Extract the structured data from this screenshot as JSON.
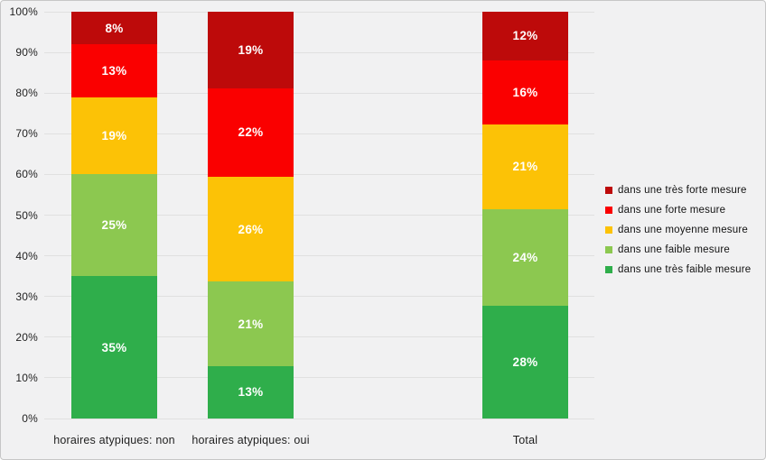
{
  "chart_data": {
    "type": "bar",
    "stacked": true,
    "percent_stacked": true,
    "title": "",
    "xlabel": "",
    "ylabel": "",
    "categories": [
      "horaires atypiques: non",
      "horaires atypiques: oui",
      "Total"
    ],
    "series": [
      {
        "name": "dans une très faible mesure",
        "color": "#2fae4b",
        "values": [
          35,
          13,
          28
        ]
      },
      {
        "name": "dans une faible mesure",
        "color": "#8cc850",
        "values": [
          25,
          21,
          24
        ]
      },
      {
        "name": "dans une moyenne mesure",
        "color": "#fcc206",
        "values": [
          19,
          26,
          21
        ]
      },
      {
        "name": "dans une forte mesure",
        "color": "#fa0000",
        "values": [
          13,
          22,
          16
        ]
      },
      {
        "name": "dans une très forte mesure",
        "color": "#bd0a0a",
        "values": [
          8,
          19,
          12
        ]
      }
    ],
    "data_label_suffix": "%",
    "yticks": [
      0,
      10,
      20,
      30,
      40,
      50,
      60,
      70,
      80,
      90,
      100
    ],
    "ytick_suffix": "%",
    "ylim": [
      0,
      100
    ],
    "grid": "horizontal",
    "legend_position": "right",
    "legend_order": "reverse-of-stack"
  },
  "colors": {
    "background": "#f1f1f2",
    "gridline": "#e0e0e0",
    "axis_text": "#1f1f1f",
    "bar_label_text": "#ffffff"
  }
}
